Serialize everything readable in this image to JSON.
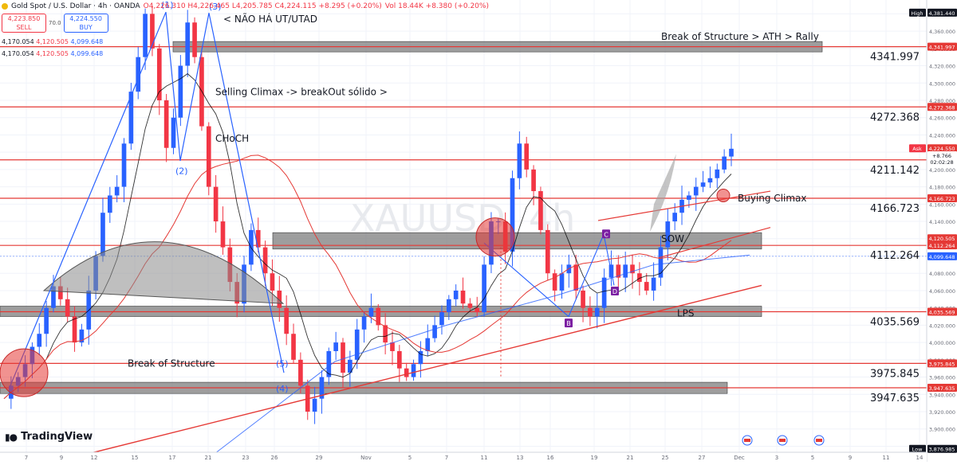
{
  "header": {
    "symbol": "Gold Spot / U.S. Dollar · 4h · OANDA",
    "ohlc": "O4,226.310  H4,226.465  L4,205.785  C4,224.115  +8.295 (+0.20%)",
    "volume": "Vol 18.44K  +8.380 (+0.20%)"
  },
  "trade": {
    "sell_price": "4,223.850",
    "sell_label": "SELL",
    "spread": "70.0",
    "buy_price": "4,224.550",
    "buy_label": "BUY"
  },
  "indicators": [
    {
      "a": "4,170.054",
      "b": "4,120.505",
      "c": "4,099.648"
    },
    {
      "a": "4,170.054",
      "b": "4,120.505",
      "c": "4,099.648"
    }
  ],
  "branding": {
    "logo_text": "TradingView",
    "watermark": "XAUUSD, 4h"
  },
  "colors": {
    "up": "#2962ff",
    "down": "#f23645",
    "resistance": "#e53935",
    "zone": "#7d7d7d",
    "wedge": "#2962ff"
  },
  "chart_data": {
    "type": "candlestick",
    "timeframe": "4h",
    "ylim": [
      3862,
      4396
    ],
    "x_ticks": [
      "7",
      "9",
      "12",
      "15",
      "17",
      "21",
      "23",
      "26",
      "29",
      "Nov",
      "5",
      "7",
      "11",
      "13",
      "16",
      "19",
      "21",
      "25",
      "27",
      "Dec",
      "3",
      "5",
      "9",
      "11",
      "14"
    ],
    "y_ticks": [
      "4,380.000",
      "4,360.000",
      "4,340.000",
      "4,320.000",
      "4,300.000",
      "4,280.000",
      "4,260.000",
      "4,240.000",
      "4,220.000",
      "4,200.000",
      "4,180.000",
      "4,160.000",
      "4,140.000",
      "4,120.000",
      "4,100.000",
      "4,080.000",
      "4,060.000",
      "4,040.000",
      "4,020.000",
      "4,000.000",
      "3,980.000",
      "3,960.000",
      "3,940.000",
      "3,920.000",
      "3,900.000",
      "3,880.000",
      "3,860.000"
    ],
    "price_badges": [
      {
        "label": "High",
        "value": "4,381.440"
      },
      {
        "label": "",
        "value": "4,341.997"
      },
      {
        "label": "",
        "value": "4,272.368"
      },
      {
        "label": "Ask",
        "value": "4,224.550"
      },
      {
        "label": "",
        "value": "+8.766"
      },
      {
        "label": "",
        "value": "02:02:28"
      },
      {
        "label": "",
        "value": "4,166.723"
      },
      {
        "label": "",
        "value": "4,120.505"
      },
      {
        "label": "",
        "value": "4,112.264"
      },
      {
        "label": "",
        "value": "4,099.648"
      },
      {
        "label": "",
        "value": "4,035.569"
      },
      {
        "label": "",
        "value": "3,975.845"
      },
      {
        "label": "",
        "value": "3,947.635"
      },
      {
        "label": "Low",
        "value": "3,876.985"
      }
    ],
    "levels": [
      {
        "value": 4341.997,
        "label": "4341.997"
      },
      {
        "value": 4272.368,
        "label": "4272.368"
      },
      {
        "value": 4211.142,
        "label": "4211.142"
      },
      {
        "value": 4166.723,
        "label": "4166.723"
      },
      {
        "value": 4112.264,
        "label": "4112.264"
      },
      {
        "value": 4035.569,
        "label": "4035.569"
      },
      {
        "value": 3975.845,
        "label": "3975.845"
      },
      {
        "value": 3947.635,
        "label": "3947.635"
      }
    ],
    "annotations": [
      "Break of Structure > ATH > Rally",
      "< NÃO HÁ UT/UTAD",
      "Selling Climax -> breakOut sólido >",
      "CHoCH",
      "Break of Structure",
      "Buying Climax",
      "SOW",
      "LPS",
      "(1)",
      "(2)",
      "(3)",
      "(4)",
      "(5)",
      "C",
      "D",
      "B"
    ],
    "close_path": [
      3935,
      3950,
      3960,
      3975,
      3995,
      4010,
      4040,
      4065,
      4050,
      4030,
      4000,
      4015,
      4060,
      4100,
      4150,
      4170,
      4180,
      4230,
      4290,
      4330,
      4380,
      4340,
      4280,
      4225,
      4260,
      4320,
      4370,
      4330,
      4250,
      4180,
      4140,
      4110,
      4070,
      4045,
      4090,
      4130,
      4110,
      4080,
      4060,
      4040,
      4010,
      3980,
      3950,
      3920,
      3935,
      3960,
      3990,
      4000,
      3965,
      3980,
      4015,
      4030,
      4040,
      4020,
      4000,
      3990,
      3970,
      3960,
      3975,
      3990,
      4005,
      4020,
      4035,
      4050,
      4060,
      4045,
      4040,
      4035,
      4090,
      4140,
      4140,
      4105,
      4190,
      4230,
      4200,
      4175,
      4130,
      4080,
      4060,
      4080,
      4090,
      4060,
      4040,
      4030,
      4040,
      4075,
      4090,
      4075,
      4090,
      4080,
      4070,
      4060,
      4075,
      4110,
      4140,
      4150,
      4165,
      4170,
      4180,
      4185,
      4190,
      4200,
      4215,
      4224
    ]
  }
}
